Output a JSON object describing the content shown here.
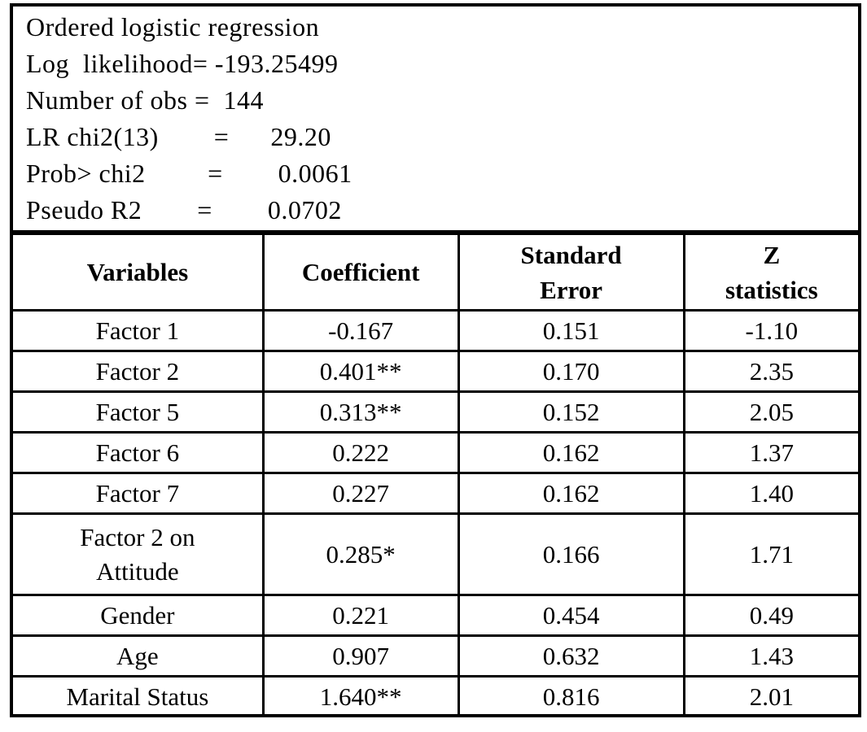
{
  "document": {
    "title": "Ordered logistic regression"
  },
  "summary": {
    "lines": [
      "Ordered logistic regression",
      "Log  likelihood= -193.25499",
      "Number of obs =  144",
      "LR chi2(13)        =      29.20",
      "Prob> chi2         =        0.0061",
      "Pseudo R2        =        0.0702"
    ]
  },
  "model_stats": {
    "log_likelihood": "-193.25499",
    "number_of_obs": "144",
    "lr_chi2_13": "29.20",
    "prob_gt_chi2": "0.0061",
    "pseudo_r2": "0.0702"
  },
  "table": {
    "columns": [
      "Variables",
      "Coefficient",
      "Standard\nError",
      "Z\nstatistics"
    ],
    "rows": [
      {
        "variable": "Factor 1",
        "coefficient": "-0.167",
        "std_error": "0.151",
        "z": "-1.10"
      },
      {
        "variable": "Factor 2",
        "coefficient": "0.401**",
        "std_error": "0.170",
        "z": "2.35"
      },
      {
        "variable": "Factor 5",
        "coefficient": "0.313**",
        "std_error": "0.152",
        "z": "2.05"
      },
      {
        "variable": "Factor 6",
        "coefficient": "0.222",
        "std_error": "0.162",
        "z": "1.37"
      },
      {
        "variable": "Factor 7",
        "coefficient": "0.227",
        "std_error": "0.162",
        "z": "1.40"
      },
      {
        "variable": "Factor 2 on\nAttitude",
        "coefficient": "0.285*",
        "std_error": "0.166",
        "z": "1.71"
      },
      {
        "variable": "Gender",
        "coefficient": "0.221",
        "std_error": "0.454",
        "z": "0.49"
      },
      {
        "variable": "Age",
        "coefficient": "0.907",
        "std_error": "0.632",
        "z": "1.43"
      },
      {
        "variable": "Marital Status",
        "coefficient": "1.640**",
        "std_error": "0.816",
        "z": "2.01"
      }
    ]
  },
  "colors": {
    "border": "#000000",
    "text": "#000000",
    "background": "#ffffff"
  }
}
